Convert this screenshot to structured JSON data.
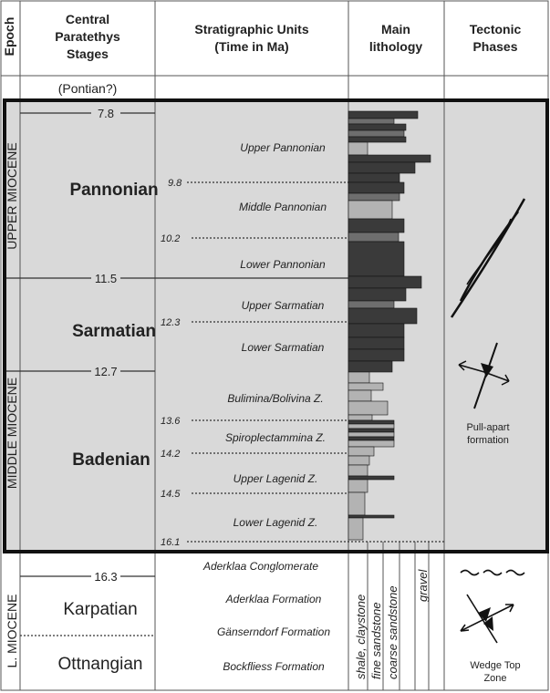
{
  "header": {
    "epoch": "Epoch",
    "stages": [
      "Central",
      "Paratethys",
      "Stages"
    ],
    "units": [
      "Stratigraphic Units",
      "(Time in Ma)"
    ],
    "lithology": [
      "Main",
      "lithology"
    ],
    "tectonic": [
      "Tectonic",
      "Phases"
    ]
  },
  "pontian": "(Pontian?)",
  "boundaries": [
    "7.8",
    "11.5",
    "12.7",
    "16.3"
  ],
  "unit_ages": [
    "9.8",
    "10.2",
    "12.3",
    "13.6",
    "14.2",
    "14.5",
    "16.1"
  ],
  "epochs": [
    "UPPER MIOCENE",
    "MIDDLE MIOCENE",
    "L. MIOCENE"
  ],
  "stages": [
    "Pannonian",
    "Sarmatian",
    "Badenian",
    "Karpatian",
    "Ottnangian"
  ],
  "units": [
    "Upper Pannonian",
    "Middle Pannonian",
    "Lower Pannonian",
    "Upper Sarmatian",
    "Lower Sarmatian",
    "Bulimina/Bolivina Z.",
    "Spiroplectammina Z.",
    "Upper Lagenid Z.",
    "Lower Lagenid Z.",
    "Aderklaa Conglomerate",
    "Aderklaa Formation",
    "Gänserndorf Formation",
    "Bockfliess Formation"
  ],
  "lithology_labels": [
    "shale, claystone",
    "fine sandstone",
    "coarse sandstone",
    "gravel"
  ],
  "tectonics": [
    [
      "Pull-apart",
      "formation"
    ],
    [
      "Wedge Top",
      "Zone"
    ]
  ]
}
